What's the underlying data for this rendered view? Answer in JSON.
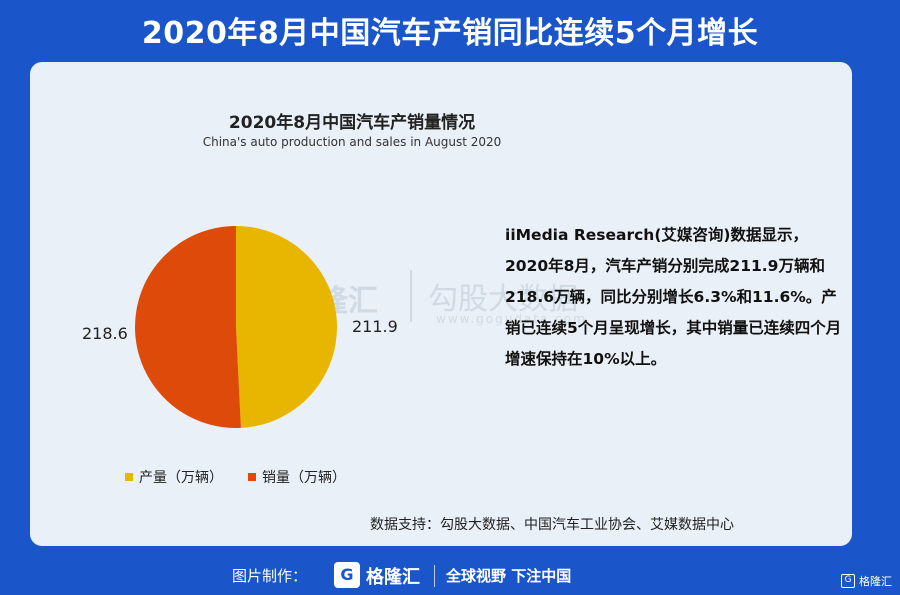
{
  "header": {
    "title": "2020年8月中国汽车产销同比连续5个月增长"
  },
  "chart_data": {
    "type": "pie",
    "title": "2020年8月中国汽车产销量情况",
    "subtitle": "China's auto production and sales in August 2020",
    "slices": [
      {
        "name": "产量（万辆）",
        "value": 211.9,
        "label": "211.9",
        "color": "#e8b600"
      },
      {
        "name": "销量（万辆）",
        "value": 218.6,
        "label": "218.6",
        "color": "#dd4a09"
      }
    ],
    "legend_placement": "bottom"
  },
  "watermark": {
    "name": "格隆汇",
    "name2": "勾股大数据",
    "url": "www.gogudata.com"
  },
  "description": "iiMedia Research(艾媒咨询)数据显示，2020年8月，汽车产销分别完成211.9万辆和218.6万辆，同比分别增长6.3%和11.6%。产销已连续5个月呈现增长，其中销量已连续四个月增速保持在10%以上。",
  "source": "数据支持：勾股大数据、中国汽车工业协会、艾媒数据中心",
  "footer": {
    "credit_label": "图片制作：",
    "brand": "格隆汇",
    "slogan": "全球视野 下注中国",
    "logo_letter": "G"
  },
  "corner": {
    "text": "格隆汇",
    "letter": "G"
  }
}
